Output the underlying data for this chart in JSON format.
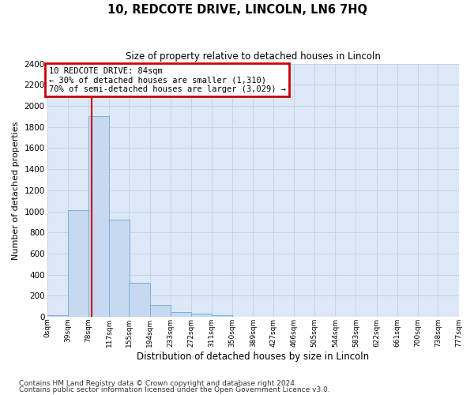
{
  "title": "10, REDCOTE DRIVE, LINCOLN, LN6 7HQ",
  "subtitle": "Size of property relative to detached houses in Lincoln",
  "xlabel": "Distribution of detached houses by size in Lincoln",
  "ylabel": "Number of detached properties",
  "footnote1": "Contains HM Land Registry data © Crown copyright and database right 2024.",
  "footnote2": "Contains public sector information licensed under the Open Government Licence v3.0.",
  "bin_edges": [
    0,
    39,
    78,
    117,
    155,
    194,
    233,
    272,
    311,
    350,
    389,
    427,
    466,
    505,
    544,
    583,
    622,
    661,
    700,
    738,
    777
  ],
  "bar_heights": [
    15,
    1010,
    1900,
    920,
    320,
    110,
    45,
    30,
    20,
    0,
    0,
    0,
    0,
    0,
    0,
    0,
    0,
    0,
    0,
    0
  ],
  "bar_color": "#c6d9f0",
  "bar_edgecolor": "#7bafd4",
  "grid_color": "#c8d4e4",
  "background_color": "#dce8f5",
  "vline_x": 84,
  "vline_color": "#cc0000",
  "ylim_max": 2400,
  "yticks": [
    0,
    200,
    400,
    600,
    800,
    1000,
    1200,
    1400,
    1600,
    1800,
    2000,
    2200,
    2400
  ],
  "annotation_title": "10 REDCOTE DRIVE: 84sqm",
  "annotation_line1": "← 30% of detached houses are smaller (1,310)",
  "annotation_line2": "70% of semi-detached houses are larger (3,029) →",
  "annotation_box_edgecolor": "#cc0000",
  "tick_labels": [
    "0sqm",
    "39sqm",
    "78sqm",
    "117sqm",
    "155sqm",
    "194sqm",
    "233sqm",
    "272sqm",
    "311sqm",
    "350sqm",
    "389sqm",
    "427sqm",
    "466sqm",
    "505sqm",
    "544sqm",
    "583sqm",
    "622sqm",
    "661sqm",
    "700sqm",
    "738sqm",
    "777sqm"
  ]
}
